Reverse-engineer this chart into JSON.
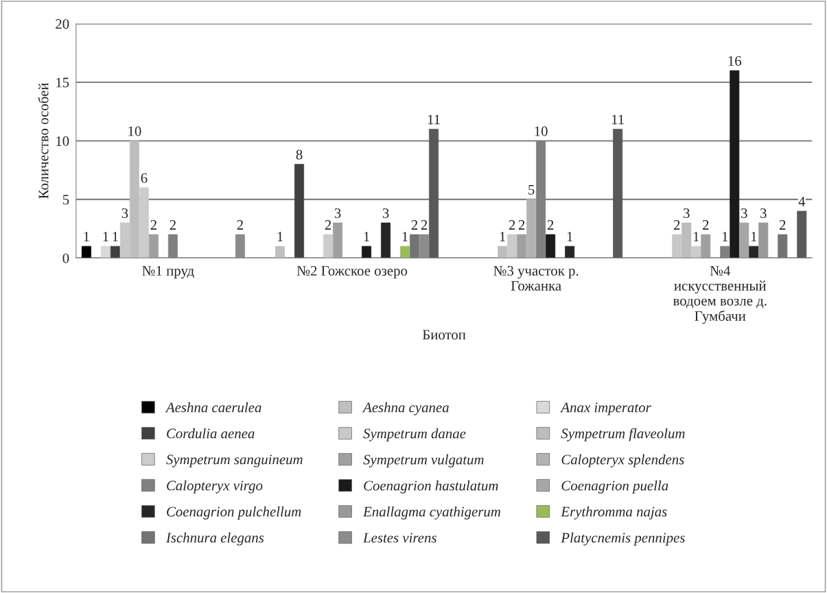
{
  "chart_data": {
    "type": "bar",
    "xlabel": "Биотоп",
    "ylabel": "Количество особей",
    "categories": [
      "№1 пруд",
      "№2 Гожское озеро",
      "№3 участок р.\nГожанка",
      "№4\nискусственный\nводоем возле д.\nГумбачи"
    ],
    "ylim": [
      0,
      20
    ],
    "yticks": [
      0,
      5,
      10,
      15,
      20
    ],
    "grid": "y",
    "legend": "bottom",
    "data_labels": true,
    "series": [
      {
        "name": "Aeshna caerulea",
        "color": "#000000",
        "values": [
          1,
          null,
          null,
          null
        ]
      },
      {
        "name": "Aeshna cyanea",
        "color": "#bfbfbf",
        "values": [
          null,
          1,
          null,
          null
        ]
      },
      {
        "name": "Anax imperator",
        "color": "#d9d9d9",
        "values": [
          1,
          null,
          null,
          null
        ]
      },
      {
        "name": "Cordulia aenea",
        "color": "#404040",
        "values": [
          1,
          8,
          null,
          null
        ]
      },
      {
        "name": "Sympetrum danae",
        "color": "#c8c8c8",
        "values": [
          3,
          null,
          null,
          2
        ]
      },
      {
        "name": "Sympetrum flaveolum",
        "color": "#bdbdbd",
        "values": [
          10,
          null,
          1,
          3
        ]
      },
      {
        "name": "Sympetrum sanguineum",
        "color": "#cccccc",
        "values": [
          6,
          2,
          2,
          1
        ]
      },
      {
        "name": "Sympetrum vulgatum",
        "color": "#a0a0a0",
        "values": [
          2,
          3,
          2,
          2
        ]
      },
      {
        "name": "Calopteryx splendens",
        "color": "#b3b3b3",
        "values": [
          null,
          null,
          5,
          null
        ]
      },
      {
        "name": "Calopteryx virgo",
        "color": "#808080",
        "values": [
          2,
          null,
          10,
          1
        ]
      },
      {
        "name": "Coenagrion hastulatum",
        "color": "#1a1a1a",
        "values": [
          null,
          1,
          2,
          16
        ]
      },
      {
        "name": "Coenagrion puella",
        "color": "#a6a6a6",
        "values": [
          null,
          null,
          null,
          3
        ]
      },
      {
        "name": "Coenagrion pulchellum",
        "color": "#262626",
        "values": [
          null,
          3,
          1,
          1
        ]
      },
      {
        "name": "Enallagma cyathigerum",
        "color": "#999999",
        "values": [
          null,
          null,
          null,
          3
        ]
      },
      {
        "name": "Erythromma najas",
        "color": "#9bbb59",
        "values": [
          null,
          1,
          null,
          null
        ]
      },
      {
        "name": "Ischnura elegans",
        "color": "#737373",
        "values": [
          null,
          2,
          null,
          2
        ]
      },
      {
        "name": "Lestes virens",
        "color": "#8c8c8c",
        "values": [
          2,
          2,
          null,
          null
        ]
      },
      {
        "name": "Platycnemis pennipes",
        "color": "#595959",
        "values": [
          null,
          11,
          11,
          4
        ]
      }
    ]
  }
}
